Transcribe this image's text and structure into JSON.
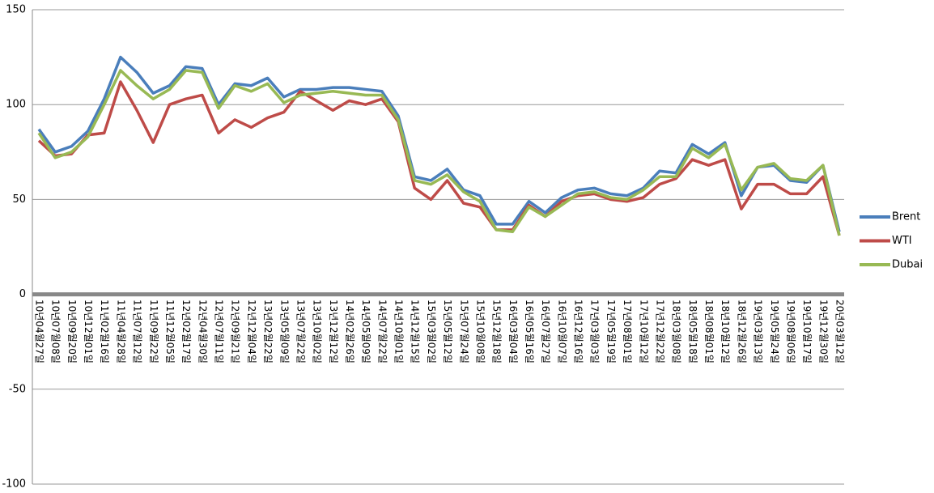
{
  "chart_data": {
    "type": "line",
    "categories": [
      "10년04월27일",
      "10년07월08일",
      "10년09월20일",
      "10년12월01일",
      "11년02월16일",
      "11년04월28일",
      "11년07월12일",
      "11년09월22일",
      "11년12월05일",
      "12년02월17일",
      "12년04월30일",
      "12년07월11일",
      "12년09월21일",
      "12년12월04일",
      "13년02월22일",
      "13년05월09일",
      "13년07월22일",
      "13년10월02일",
      "13년12월12일",
      "14년02월26일",
      "14년05월09일",
      "14년07월22일",
      "14년10월01일",
      "14년12월15일",
      "15년03월02일",
      "15년05월12일",
      "15년07월24일",
      "15년10월08일",
      "15년12월18일",
      "16년03월04일",
      "16년05월16일",
      "16년07월27일",
      "16년10월07일",
      "16년12월16일",
      "17년03월03일",
      "17년05월19일",
      "17년08월01일",
      "17년10월12일",
      "17년12월22일",
      "18년03월08일",
      "18년05월18일",
      "18년08월01일",
      "18년10월12일",
      "18년12월26일",
      "19년03월13일",
      "19년05월24일",
      "19년08월06일",
      "19년10월17일",
      "19년12월30일",
      "20년03월12일"
    ],
    "series": [
      {
        "name": "Brent",
        "color": "#4a7ebb",
        "values": [
          87,
          75,
          78,
          86,
          103,
          125,
          117,
          106,
          110,
          120,
          119,
          100,
          111,
          110,
          114,
          104,
          108,
          108,
          109,
          109,
          108,
          107,
          94,
          62,
          60,
          66,
          55,
          52,
          37,
          37,
          49,
          43,
          51,
          55,
          56,
          53,
          52,
          56,
          65,
          64,
          79,
          74,
          80,
          52,
          67,
          68,
          60,
          59,
          68,
          33
        ]
      },
      {
        "name": "WTI",
        "color": "#be4b48",
        "values": [
          81,
          73,
          74,
          84,
          85,
          112,
          97,
          80,
          100,
          103,
          105,
          85,
          92,
          88,
          93,
          96,
          107,
          102,
          97,
          102,
          100,
          103,
          91,
          56,
          50,
          60,
          48,
          46,
          34,
          34,
          47,
          41,
          49,
          52,
          53,
          50,
          49,
          51,
          58,
          61,
          71,
          68,
          71,
          45,
          58,
          58,
          53,
          53,
          62,
          31
        ]
      },
      {
        "name": "Dubai",
        "color": "#98b954",
        "values": [
          85,
          72,
          75,
          83,
          100,
          118,
          110,
          103,
          108,
          118,
          117,
          98,
          110,
          107,
          111,
          101,
          105,
          106,
          107,
          106,
          105,
          105,
          92,
          60,
          58,
          63,
          54,
          49,
          34,
          33,
          46,
          41,
          47,
          53,
          54,
          51,
          50,
          55,
          62,
          62,
          77,
          72,
          79,
          55,
          67,
          69,
          61,
          60,
          68,
          31
        ]
      }
    ],
    "ylim": [
      -100,
      150
    ],
    "yticks": [
      -100,
      -50,
      0,
      50,
      100,
      150
    ],
    "grid": true,
    "legend": "right"
  }
}
